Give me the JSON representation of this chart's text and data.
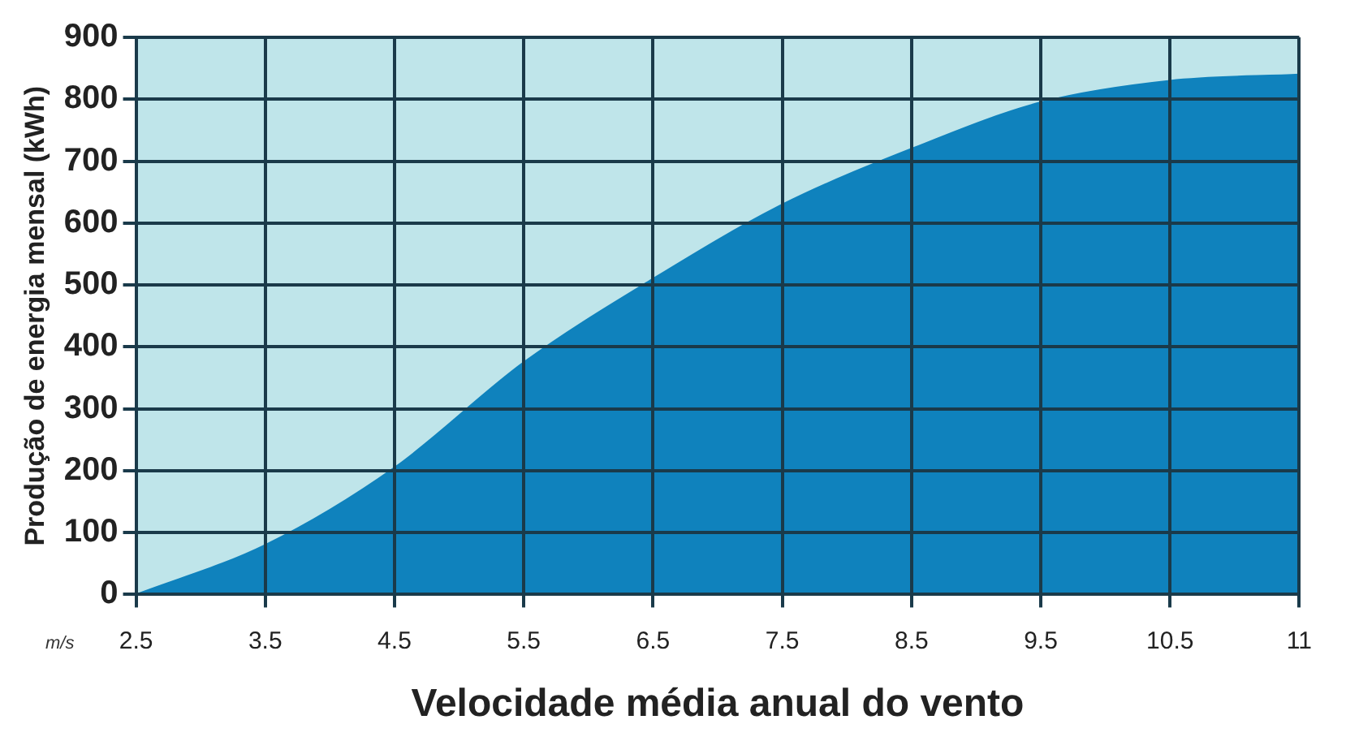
{
  "chart_data": {
    "type": "area",
    "xlabel": "Velocidade média anual do vento",
    "ylabel": "Produção de energia mensal (kWh)",
    "annotations": [
      "m/s"
    ],
    "categories": [
      "2.5",
      "3.5",
      "4.5",
      "5.5",
      "6.5",
      "7.5",
      "8.5",
      "9.5",
      "10.5",
      "11"
    ],
    "series": [
      {
        "color": "#0f82bd",
        "values": [
          0,
          80,
          205,
          375,
          510,
          630,
          720,
          795,
          830,
          840
        ]
      }
    ],
    "ylim": [
      0,
      900
    ],
    "yticks": [
      0,
      100,
      200,
      300,
      400,
      500,
      600,
      700,
      800,
      900
    ],
    "grid": true,
    "legend": false,
    "bands": [
      {
        "axis": "y",
        "from": 0,
        "to": 900,
        "color": "#bfe5ea"
      }
    ]
  }
}
